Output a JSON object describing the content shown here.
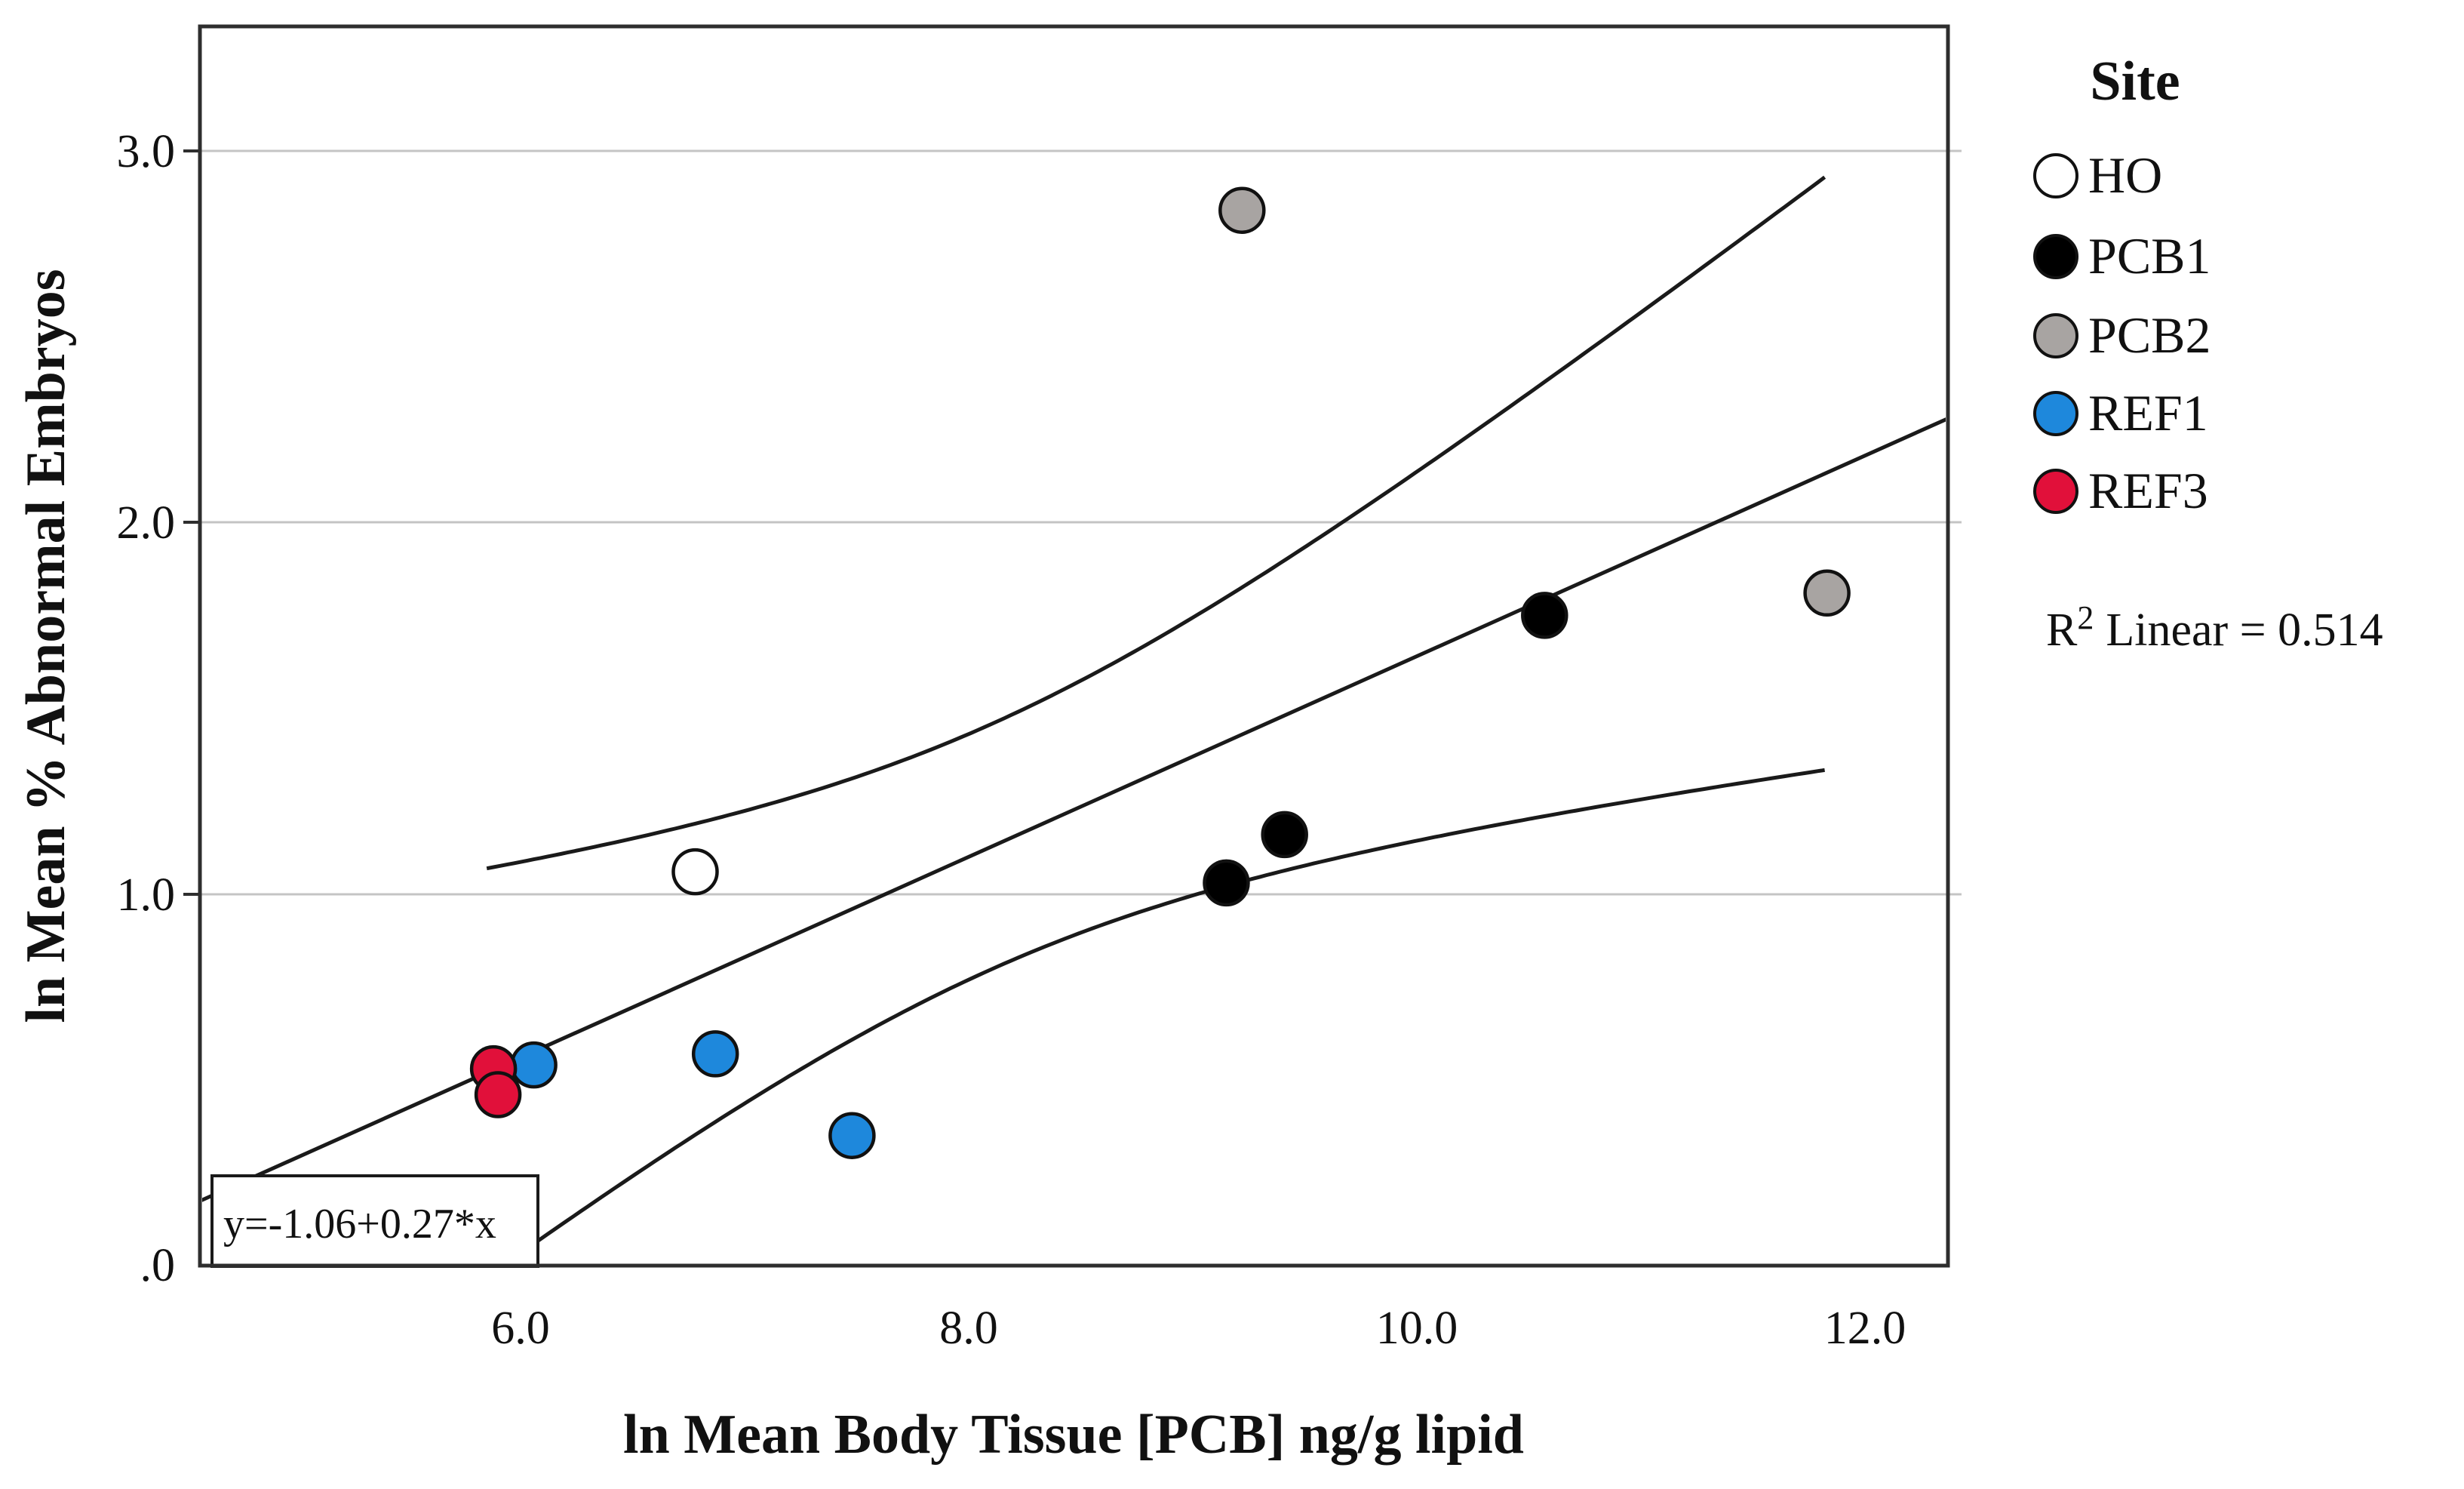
{
  "figure": {
    "legend": {
      "title": "Site",
      "items": [
        {
          "label": "HO",
          "color": "#ffffff"
        },
        {
          "label": "PCB1",
          "color": "#000000"
        },
        {
          "label": "PCB2",
          "color": "#a8a4a2"
        },
        {
          "label": "REF1",
          "color": "#1e88dc"
        },
        {
          "label": "REF3",
          "color": "#e1103a"
        }
      ]
    },
    "annotations": {
      "equation": "y=-1.06+0.27*x",
      "r2_prefix": "R",
      "r2_sup": "2",
      "r2_rest": "Linear = 0.514"
    }
  },
  "chart_data": {
    "type": "scatter",
    "title": "",
    "xlabel": "ln Mean Body Tissue [PCB] ng/g lipid",
    "ylabel": "ln Mean % Abnormal Embryos",
    "xlim": [
      4.57,
      12.37
    ],
    "ylim": [
      0,
      3.335
    ],
    "grid": "horizontal",
    "legend_position": "right-top",
    "xticks": {
      "values": [
        6.0,
        8.0,
        10.0,
        12.0
      ],
      "labels": [
        "6.0",
        "8.0",
        "10.0",
        "12.0"
      ]
    },
    "yticks": {
      "values": [
        0.0,
        1.0,
        2.0,
        3.0
      ],
      "labels": [
        ".0",
        "1.0",
        "2.0",
        "3.0"
      ]
    },
    "series": [
      {
        "name": "HO",
        "fill": "#ffffff",
        "points": [
          [
            6.78,
            1.06
          ]
        ]
      },
      {
        "name": "PCB1",
        "fill": "#000000",
        "points": [
          [
            9.15,
            1.03
          ],
          [
            9.41,
            1.16
          ],
          [
            10.57,
            1.75
          ]
        ]
      },
      {
        "name": "PCB2",
        "fill": "#a8a4a2",
        "points": [
          [
            9.22,
            2.84
          ],
          [
            11.83,
            1.81
          ]
        ]
      },
      {
        "name": "REF1",
        "fill": "#1e88dc",
        "points": [
          [
            6.06,
            0.54
          ],
          [
            6.87,
            0.57
          ],
          [
            7.48,
            0.35
          ]
        ]
      },
      {
        "name": "REF3",
        "fill": "#e1103a",
        "points": [
          [
            5.88,
            0.53
          ],
          [
            5.9,
            0.46
          ]
        ]
      }
    ],
    "regression": {
      "slope": 0.27,
      "intercept": -1.06,
      "equation": "y=-1.06+0.27*x",
      "r_squared": 0.514,
      "x_range": [
        4.57,
        12.37
      ]
    },
    "confidence_band": {
      "half_width_at_mean": 0.33,
      "curvature": 0.35,
      "x_mean": 8.1,
      "x_range": [
        5.85,
        11.84
      ]
    },
    "colors": {
      "line": "#1a1a1a",
      "gridline": "#c4c4c4",
      "plot_border": "#2e2e2e",
      "point_outline": "#111111"
    }
  }
}
